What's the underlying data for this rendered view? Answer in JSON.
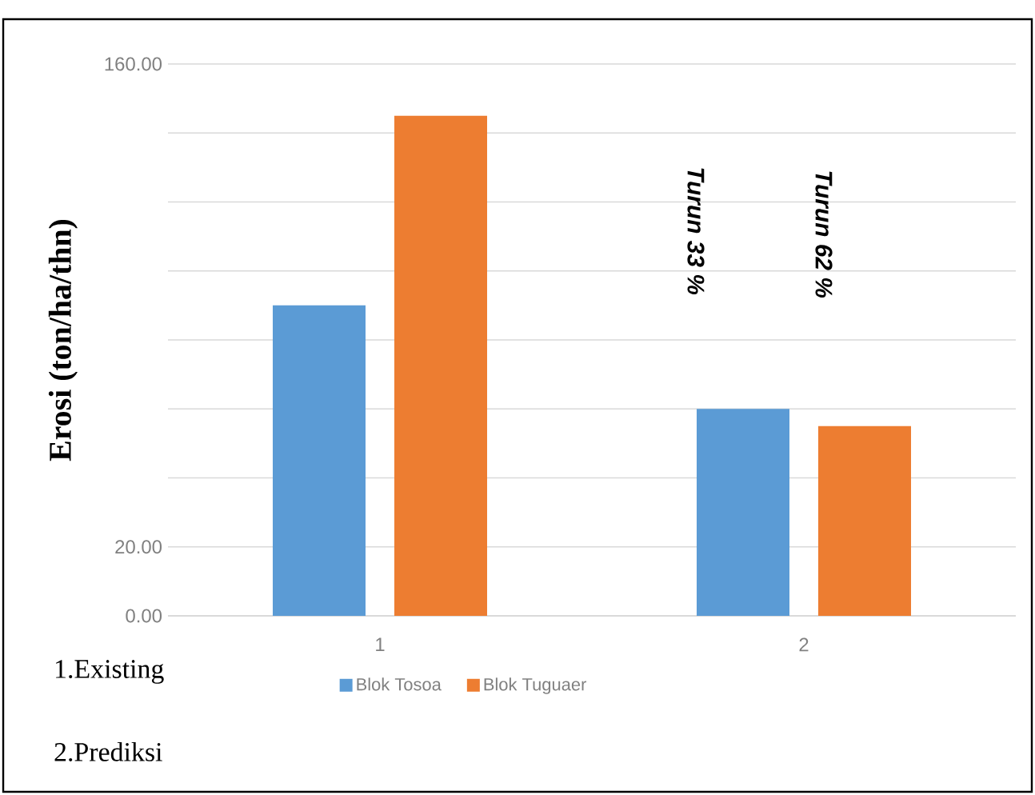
{
  "chart_data": {
    "type": "bar",
    "categories": [
      "1",
      "2"
    ],
    "series": [
      {
        "name": "Blok Tosoa",
        "color": "#5b9bd5",
        "values": [
          90,
          60
        ]
      },
      {
        "name": "Blok Tuguaer",
        "color": "#ed7d31",
        "values": [
          145,
          55
        ]
      }
    ],
    "ylabel": "Erosi (ton/ha/thn)",
    "ylim": [
      0,
      160
    ],
    "yticks": [
      {
        "value": 0,
        "label": "0.00"
      },
      {
        "value": 20,
        "label": "20.00"
      },
      {
        "value": 40,
        "label": null
      },
      {
        "value": 60,
        "label": null
      },
      {
        "value": 80,
        "label": null
      },
      {
        "value": 100,
        "label": null
      },
      {
        "value": 120,
        "label": null
      },
      {
        "value": 140,
        "label": null
      },
      {
        "value": 160,
        "label": "160.00"
      }
    ],
    "grid": "y",
    "legend": "bottom",
    "annotations": [
      "Turun 33 %",
      "Turun 62 %",
      "1.Existing",
      "2.Prediksi"
    ]
  }
}
